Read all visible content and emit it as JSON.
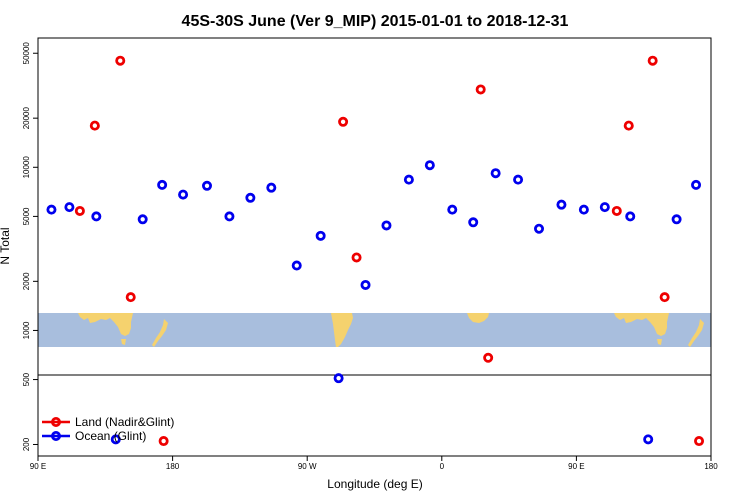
{
  "chart_data": {
    "type": "scatter",
    "title": "45S-30S June (Ver 9_MIP)   2015-01-01 to 2018-12-31",
    "xlabel": "Longitude (deg E)",
    "ylabel": "N Total",
    "y_scale": "log",
    "ylim": [
      170,
      62000
    ],
    "x_ticks": [
      {
        "value": 90,
        "label": "90 E"
      },
      {
        "value": 180,
        "label": "180"
      },
      {
        "value": 270,
        "label": "90 W"
      },
      {
        "value": 360,
        "label": "0"
      },
      {
        "value": 450,
        "label": "90 E"
      },
      {
        "value": 540,
        "label": "180"
      }
    ],
    "xlim": [
      90,
      540
    ],
    "y_ticks": [
      200,
      500,
      1000,
      2000,
      5000,
      10000,
      20000,
      50000
    ],
    "legend_position": "bottom-left",
    "series": [
      {
        "name": "Land (Nadir&Glint)",
        "color": "#ee0000",
        "points": [
          {
            "x": 118,
            "y": 5400
          },
          {
            "x": 128,
            "y": 18000
          },
          {
            "x": 145,
            "y": 45000
          },
          {
            "x": 152,
            "y": 1600
          },
          {
            "x": 174,
            "y": 210
          },
          {
            "x": 294,
            "y": 19000
          },
          {
            "x": 303,
            "y": 2800
          },
          {
            "x": 386,
            "y": 30000
          },
          {
            "x": 391,
            "y": 680
          },
          {
            "x": 477,
            "y": 5400
          },
          {
            "x": 485,
            "y": 18000
          },
          {
            "x": 501,
            "y": 45000
          },
          {
            "x": 509,
            "y": 1600
          },
          {
            "x": 532,
            "y": 210
          }
        ]
      },
      {
        "name": "Ocean (Glint)",
        "color": "#0000ee",
        "points": [
          {
            "x": 99,
            "y": 5500
          },
          {
            "x": 111,
            "y": 5700
          },
          {
            "x": 129,
            "y": 5000
          },
          {
            "x": 142,
            "y": 215
          },
          {
            "x": 160,
            "y": 4800
          },
          {
            "x": 173,
            "y": 7800
          },
          {
            "x": 187,
            "y": 6800
          },
          {
            "x": 203,
            "y": 7700
          },
          {
            "x": 218,
            "y": 5000
          },
          {
            "x": 232,
            "y": 6500
          },
          {
            "x": 246,
            "y": 7500
          },
          {
            "x": 263,
            "y": 2500
          },
          {
            "x": 279,
            "y": 3800
          },
          {
            "x": 291,
            "y": 510
          },
          {
            "x": 309,
            "y": 1900
          },
          {
            "x": 323,
            "y": 4400
          },
          {
            "x": 338,
            "y": 8400
          },
          {
            "x": 352,
            "y": 10300
          },
          {
            "x": 367,
            "y": 5500
          },
          {
            "x": 381,
            "y": 4600
          },
          {
            "x": 396,
            "y": 9200
          },
          {
            "x": 411,
            "y": 8400
          },
          {
            "x": 425,
            "y": 4200
          },
          {
            "x": 440,
            "y": 5900
          },
          {
            "x": 455,
            "y": 5500
          },
          {
            "x": 469,
            "y": 5700
          },
          {
            "x": 486,
            "y": 5000
          },
          {
            "x": 498,
            "y": 215
          },
          {
            "x": 517,
            "y": 4800
          },
          {
            "x": 530,
            "y": 7800
          }
        ]
      }
    ]
  }
}
